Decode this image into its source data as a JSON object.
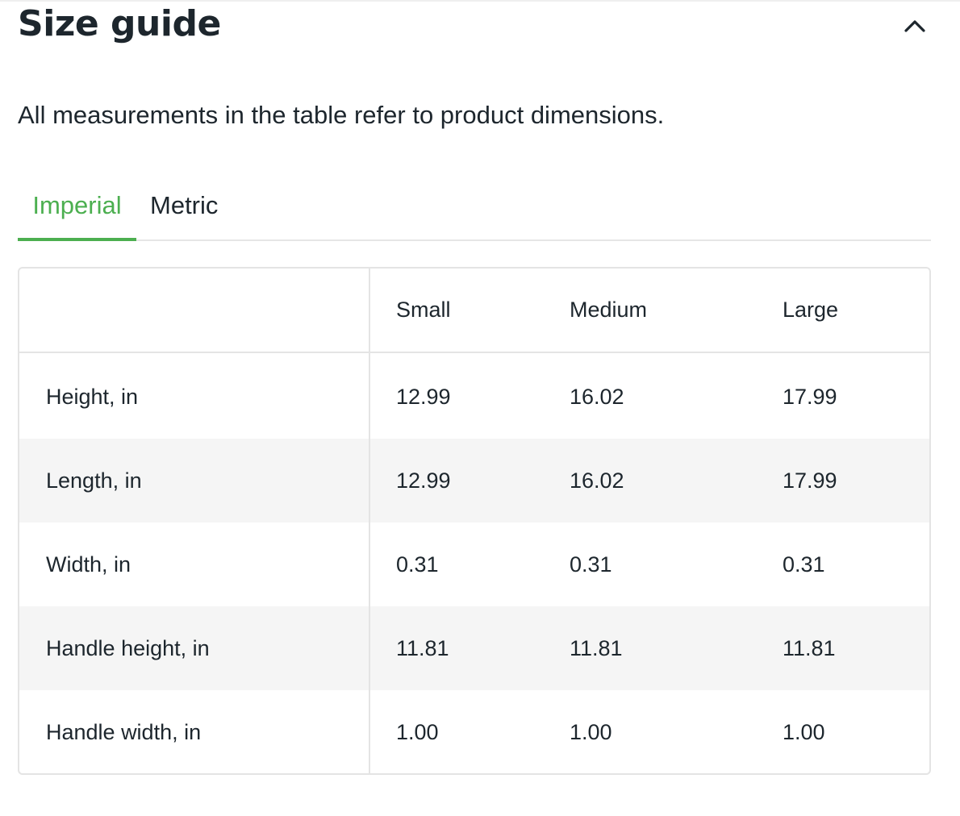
{
  "size_guide": {
    "title": "Size guide",
    "toggle_icon": "chevron-up-icon",
    "description": "All measurements in the table refer to product dimensions.",
    "tabs": [
      {
        "label": "Imperial",
        "active": true
      },
      {
        "label": "Metric",
        "active": false
      }
    ],
    "accent_color": "#4caf50",
    "table": {
      "columns": [
        "",
        "Small",
        "Medium",
        "Large"
      ],
      "rows": [
        {
          "label": "Height, in",
          "values": [
            "12.99",
            "16.02",
            "17.99"
          ]
        },
        {
          "label": "Length, in",
          "values": [
            "12.99",
            "16.02",
            "17.99"
          ]
        },
        {
          "label": "Width, in",
          "values": [
            "0.31",
            "0.31",
            "0.31"
          ]
        },
        {
          "label": "Handle height, in",
          "values": [
            "11.81",
            "11.81",
            "11.81"
          ]
        },
        {
          "label": "Handle width, in",
          "values": [
            "1.00",
            "1.00",
            "1.00"
          ]
        }
      ]
    }
  }
}
